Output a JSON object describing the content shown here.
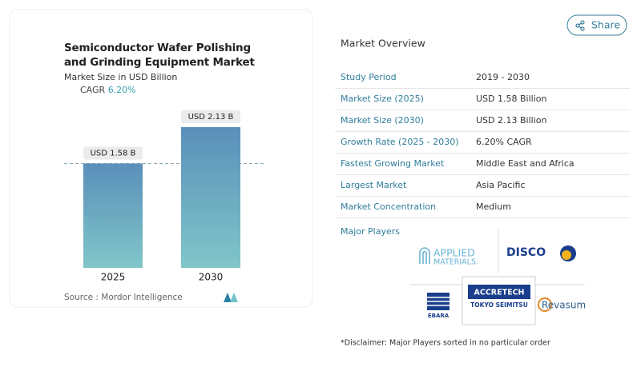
{
  "chart_data": {
    "type": "bar",
    "title": "Semiconductor Wafer Polishing and Grinding Equipment Market",
    "subtitle": "Market Size in USD Billion",
    "cagr_label": "CAGR",
    "cagr": "6.20%",
    "categories": [
      "2025",
      "2030"
    ],
    "values": [
      1.58,
      2.13
    ],
    "value_labels": [
      "USD 1.58 B",
      "USD 2.13 B"
    ],
    "source": "Source : Mordor Intelligence"
  },
  "share": "Share",
  "market_overview": {
    "title": "Market Overview",
    "rows": [
      [
        "Study Period",
        "2019 - 2030"
      ],
      [
        "Market Size (2025)",
        "USD 1.58 Billion"
      ],
      [
        "Market Size (2030)",
        "USD 2.13 Billion"
      ],
      [
        "Growth Rate (2025 - 2030)",
        "6.20% CAGR"
      ],
      [
        "Fastest Growing Market",
        "Middle East and Africa"
      ],
      [
        "Largest Market",
        "Asia Pacific"
      ],
      [
        "Market Concentration",
        "Medium"
      ]
    ]
  },
  "major_players": {
    "title": "Major Players",
    "applied": [
      "APPLIED",
      "MATERIALS."
    ],
    "disco": "DISCO",
    "ebara": "EBARA",
    "accretech": [
      "ACCRETECH",
      "TOKYO SEIMITSU"
    ],
    "revasum": "Revasum"
  },
  "disclaimer": "*Disclaimer: Major Players sorted in no particular order"
}
